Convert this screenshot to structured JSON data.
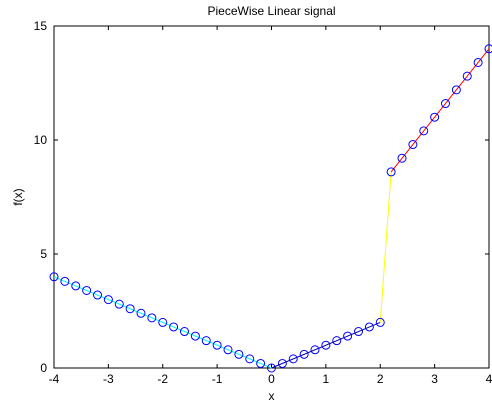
{
  "chart_data": {
    "type": "line",
    "title": "PieceWise Linear signal",
    "xlabel": "x",
    "ylabel": "f(x)",
    "xlim": [
      -4,
      4
    ],
    "ylim": [
      0,
      15
    ],
    "xticks": [
      -4,
      -3,
      -2,
      -1,
      0,
      1,
      2,
      3,
      4
    ],
    "yticks": [
      0,
      5,
      10,
      15
    ],
    "grid": false,
    "x": [
      -4.0,
      -3.8,
      -3.6,
      -3.4,
      -3.2,
      -3.0,
      -2.8,
      -2.6,
      -2.4,
      -2.2,
      -2.0,
      -1.8,
      -1.6,
      -1.4,
      -1.2,
      -1.0,
      -0.8,
      -0.6,
      -0.4,
      -0.2,
      0.0,
      0.2,
      0.4,
      0.6,
      0.8,
      1.0,
      1.2,
      1.4,
      1.6,
      1.8,
      2.0,
      2.2,
      2.4,
      2.6,
      2.8,
      3.0,
      3.2,
      3.4,
      3.6,
      3.8,
      4.0
    ],
    "y": [
      4.0,
      3.8,
      3.6,
      3.4,
      3.2,
      3.0,
      2.8,
      2.6,
      2.4,
      2.2,
      2.0,
      1.8,
      1.6,
      1.4,
      1.2,
      1.0,
      0.8,
      0.6,
      0.4,
      0.2,
      0.0,
      0.2,
      0.4,
      0.6,
      0.8,
      1.0,
      1.2,
      1.4,
      1.6,
      1.8,
      2.0,
      8.6,
      9.2,
      9.8,
      10.4,
      11.0,
      11.6,
      12.2,
      12.8,
      13.4,
      14.0
    ],
    "segments": [
      {
        "x": [
          -4,
          0
        ],
        "y": [
          4,
          0
        ],
        "color": "#00ffff"
      },
      {
        "x": [
          0,
          2
        ],
        "y": [
          0,
          2
        ],
        "color": "#0000aa"
      },
      {
        "x": [
          2,
          2.2
        ],
        "y": [
          2,
          8.6
        ],
        "color": "#ffff00"
      },
      {
        "x": [
          2.2,
          4
        ],
        "y": [
          8.6,
          14
        ],
        "color": "#ff0000"
      }
    ],
    "marker": "circle",
    "marker_color": "#0000ff"
  }
}
